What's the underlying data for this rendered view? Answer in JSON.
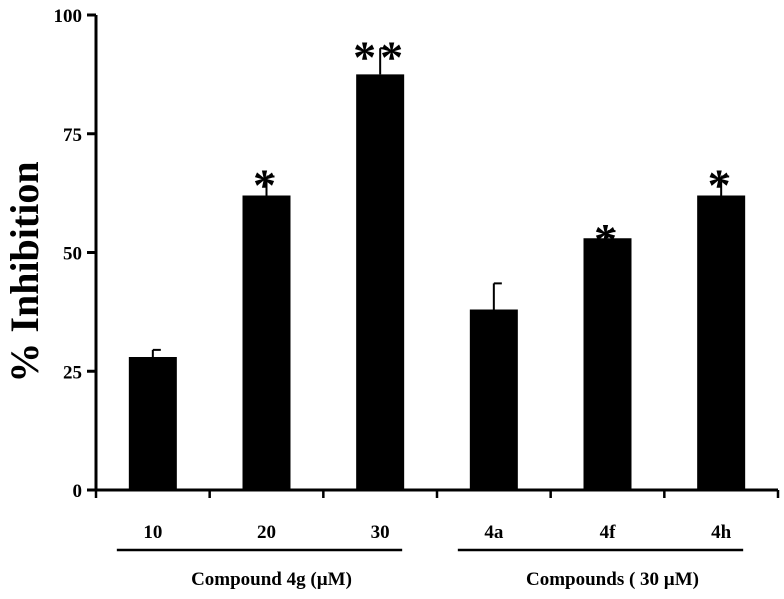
{
  "chart_data": {
    "type": "bar",
    "title": "",
    "ylabel": "% Inhibition",
    "xlabel": "",
    "ylim": [
      0,
      100
    ],
    "yticks": [
      0,
      25,
      50,
      75,
      100
    ],
    "categories": [
      "10",
      "20",
      "30",
      "4a",
      "4f",
      "4h"
    ],
    "values": [
      28,
      62,
      87.5,
      38,
      53,
      62
    ],
    "errors": [
      1.5,
      4,
      5.5,
      5.5,
      1.5,
      4
    ],
    "significance": [
      "",
      "*",
      "**",
      "",
      "*",
      "*"
    ],
    "groups": [
      {
        "label": "Compound 4g (µM)",
        "categories": [
          "10",
          "20",
          "30"
        ]
      },
      {
        "label": "Compounds ( 30 µM)",
        "categories": [
          "4a",
          "4f",
          "4h"
        ]
      }
    ],
    "bar_color": "#000000"
  }
}
